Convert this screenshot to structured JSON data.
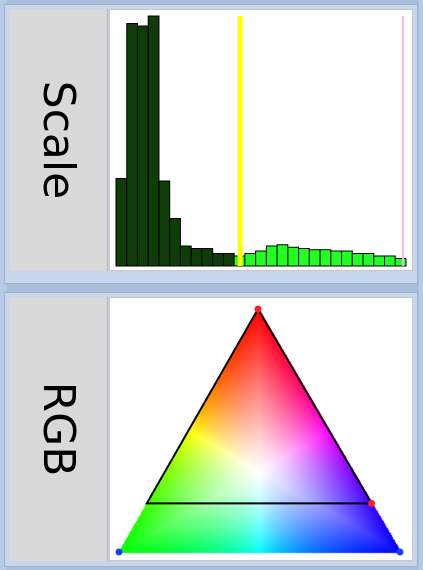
{
  "panels": {
    "scale": {
      "label": "Scale",
      "histogram": {
        "bar_values": [
          0.35,
          0.97,
          0.96,
          1.0,
          0.34,
          0.19,
          0.08,
          0.07,
          0.07,
          0.05,
          0.05,
          0.04,
          0.05,
          0.06,
          0.08,
          0.085,
          0.075,
          0.07,
          0.065,
          0.065,
          0.06,
          0.06,
          0.05,
          0.05,
          0.04,
          0.04,
          0.03
        ],
        "split_index": 11,
        "low_color": "#0f3d07",
        "high_color": "#22ff22",
        "bar_outline": "#000000",
        "marker_yellow_position": 0.43,
        "marker_pink_position": 0.99,
        "marker_yellow_color": "#ffff00",
        "marker_pink_color": "#f4b6f0"
      }
    },
    "rgb": {
      "label": "RGB",
      "triangle": {
        "vertex_colors": {
          "top": "#ff0000",
          "left": "#00ff00",
          "right": "#0000ff"
        },
        "handle_color_top": "#ff2020",
        "handle_color_right": "#ff2020",
        "handle_color_corners": "#1a3cff",
        "inner_line_level": 0.8
      }
    }
  }
}
